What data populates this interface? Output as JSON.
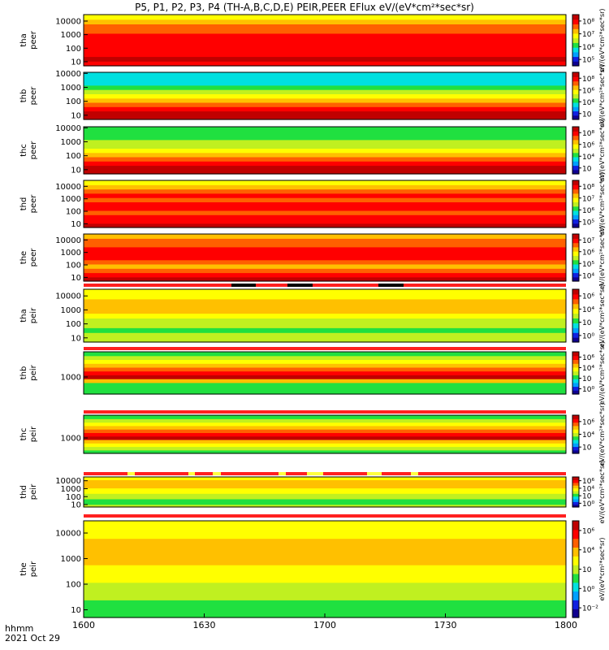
{
  "title": "P5, P1, P2, P3, P4 (TH-A,B,C,D,E) PEIR,PEER EFlux eV/(eV*cm²*sec*sr)",
  "footer": {
    "line1": "hhmm",
    "line2": "2021 Oct 29"
  },
  "colors": {
    "colormap": [
      "#100090",
      "#1020e0",
      "#00a0ff",
      "#00e0e0",
      "#20e040",
      "#c0f020",
      "#ffff00",
      "#ffc000",
      "#ff6000",
      "#ff0000",
      "#c00000"
    ],
    "flag_red": "#ff2020",
    "flag_yellow": "#ffff40",
    "flag_black": "#000000"
  },
  "chart_data": {
    "type": "heatmap",
    "title": "P5, P1, P2, P3, P4 (TH-A,B,C,D,E) PEIR,PEER EFlux eV/(eV*cm²*sec*sr)",
    "x_tick_labels": [
      "1600",
      "1630",
      "1700",
      "1730",
      "1800"
    ],
    "x_range": [
      "16:00",
      "18:00"
    ],
    "xlabel": "hhmm",
    "date": "2021 Oct 29",
    "colorbar_label_text": "eV/(eV*cm²*sec*sr)",
    "panels": [
      {
        "probe": "tha",
        "species": "peer",
        "y_ticks": [
          "10",
          "100",
          "1000",
          "10000"
        ],
        "y_range": [
          5,
          30000
        ],
        "y_scale": "log",
        "cb_ticks": [
          "10⁵",
          "10⁶",
          "10⁷",
          "10⁸"
        ],
        "cb_range": [
          100000.0,
          100000000.0
        ]
      },
      {
        "probe": "thb",
        "species": "peer",
        "y_ticks": [
          "10",
          "100",
          "1000",
          "10000"
        ],
        "y_range": [
          5,
          12000
        ],
        "y_scale": "log",
        "cb_ticks": [
          "10⁲",
          "10⁴",
          "10⁶",
          "10⁸"
        ],
        "cb_range": [
          100.0,
          100000000.0
        ]
      },
      {
        "probe": "thc",
        "species": "peer",
        "y_ticks": [
          "10",
          "100",
          "1000",
          "10000"
        ],
        "y_range": [
          5,
          12000
        ],
        "y_scale": "log",
        "cb_ticks": [
          "10⁲",
          "10⁴",
          "10⁶",
          "10⁸"
        ],
        "cb_range": [
          100.0,
          100000000.0
        ]
      },
      {
        "probe": "thd",
        "species": "peer",
        "y_ticks": [
          "10",
          "100",
          "1000",
          "10000"
        ],
        "y_range": [
          5,
          30000
        ],
        "y_scale": "log",
        "cb_ticks": [
          "10⁵",
          "10⁶",
          "10⁷",
          "10⁸"
        ],
        "cb_range": [
          100000.0,
          100000000.0
        ]
      },
      {
        "probe": "the",
        "species": "peer",
        "y_ticks": [
          "10",
          "100",
          "1000",
          "10000"
        ],
        "y_range": [
          5,
          30000
        ],
        "y_scale": "log",
        "cb_ticks": [
          "10⁴",
          "10⁵",
          "10⁶",
          "10⁷"
        ],
        "cb_range": [
          10000.0,
          10000000.0
        ]
      },
      {
        "probe": "tha",
        "species": "peir",
        "y_ticks": [
          "10",
          "100",
          "1000",
          "10000"
        ],
        "y_range": [
          5,
          30000
        ],
        "y_scale": "log",
        "cb_ticks": [
          "10⁰",
          "10⁲",
          "10⁴",
          "10⁶"
        ],
        "cb_range": [
          1.0,
          1000000.0
        ]
      },
      {
        "probe": "thb",
        "species": "peir",
        "y_ticks": [
          "1000"
        ],
        "y_range": [
          100,
          30000
        ],
        "y_scale": "log",
        "cb_ticks": [
          "10⁰",
          "10⁲",
          "10⁴",
          "10⁶"
        ],
        "cb_range": [
          1.0,
          1000000.0
        ]
      },
      {
        "probe": "thc",
        "species": "peir",
        "y_ticks": [
          "1000"
        ],
        "y_range": [
          100,
          30000
        ],
        "y_scale": "log",
        "cb_ticks": [
          "10⁲",
          "10⁴",
          "10⁶"
        ],
        "cb_range": [
          100.0,
          1000000.0
        ]
      },
      {
        "probe": "thd",
        "species": "peir",
        "y_ticks": [
          "10",
          "100",
          "1000",
          "10000"
        ],
        "y_range": [
          5,
          30000
        ],
        "y_scale": "log",
        "cb_ticks": [
          "10⁰",
          "10⁲",
          "10⁴",
          "10⁶"
        ],
        "cb_range": [
          1.0,
          1000000.0
        ]
      },
      {
        "probe": "the",
        "species": "peir",
        "y_ticks": [
          "10",
          "100",
          "1000",
          "10000"
        ],
        "y_range": [
          5,
          30000
        ],
        "y_scale": "log",
        "cb_ticks": [
          "10⁻²",
          "10⁰",
          "10⁲",
          "10⁴",
          "10⁶"
        ],
        "cb_range": [
          0.01,
          1000000.0
        ]
      }
    ]
  }
}
